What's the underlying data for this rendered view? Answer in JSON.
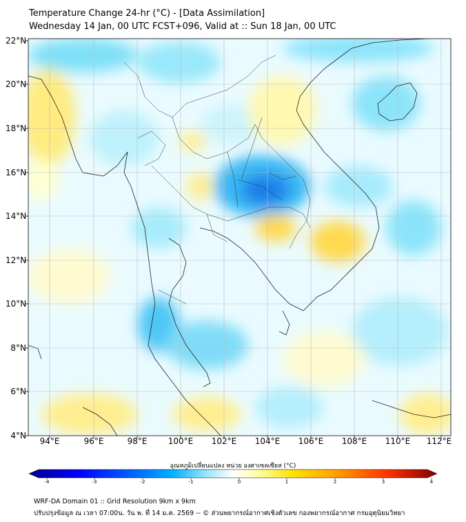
{
  "title_line1": "Temperature Change 24-hr (°C) - [Data Assimilation]",
  "title_line2": "Wednesday 14 Jan, 00 UTC FCST+096, Valid at :: Sun 18 Jan, 00 UTC",
  "lat_labels": [
    "22°N",
    "20°N",
    "18°N",
    "16°N",
    "14°N",
    "12°N",
    "10°N",
    "8°N",
    "6°N",
    "4°N"
  ],
  "lon_labels": [
    "94°E",
    "96°E",
    "98°E",
    "100°E",
    "102°E",
    "104°E",
    "106°E",
    "108°E",
    "110°E",
    "112°E"
  ],
  "colorbar": {
    "title": "อุณหภูมิเปลี่ยนแปลง หน่วย องศาเซลเซียส (°C)",
    "ticks": [
      "-4",
      "-3",
      "-2",
      "-1",
      "0",
      "1",
      "2",
      "3",
      "4"
    ],
    "colors": [
      "#00008b",
      "#0000ff",
      "#0050ff",
      "#00a8ff",
      "#00d8ff",
      "#aaf0ff",
      "#ffffff",
      "#ffffa0",
      "#ffe000",
      "#ffa000",
      "#ff5000",
      "#e00000",
      "#800000"
    ]
  },
  "footer_line1": "WRF-DA Domain 01 :: Grid Resolution 9km x 9km",
  "footer_line2": "ปรับปรุงข้อมูล ณ เวลา 07:00น. วัน พ. ที่ 14 ม.ค. 2569 -- © ส่วนพยากรณ์อากาศเชิงตัวเลข กองพยากรณ์อากาศ กรมอุตุนิยมวิทยา"
}
